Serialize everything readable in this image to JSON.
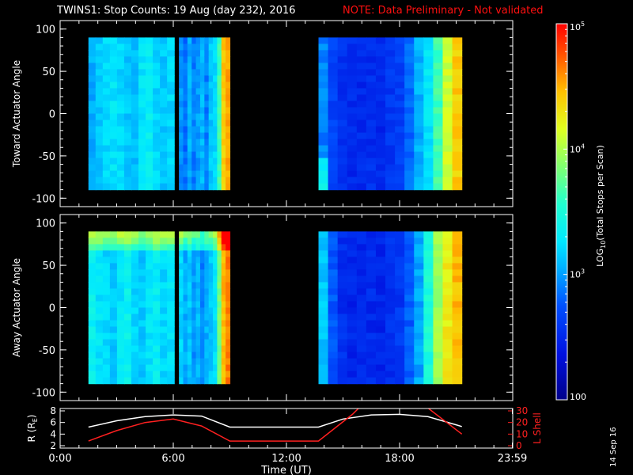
{
  "header": {
    "title": "TWINS1: Stop Counts: 19 Aug (day 232), 2016",
    "note": "NOTE: Data Preliminary - Not validated"
  },
  "date_stamp": "14 Sep 16",
  "colors": {
    "background": "#000000",
    "axis": "#ffffff",
    "note": "#ff1010",
    "l_shell": "#ff2020",
    "r_line": "#ffffff"
  },
  "chart_data": [
    {
      "type": "heatmap",
      "name": "toward",
      "ylabel": "Toward Actuator Angle",
      "ylim": [
        -110,
        110
      ],
      "yticks": [
        -100,
        -50,
        0,
        50,
        100
      ],
      "xlim": [
        0,
        24
      ],
      "segments": [
        {
          "t_start": 1.5,
          "t_end": 6.05,
          "level": "cyan",
          "cols": [
            0.35,
            0.38,
            0.4,
            0.42,
            0.4,
            0.38,
            0.36,
            0.42,
            0.44,
            0.4,
            0.38,
            0.4
          ]
        },
        {
          "t_start": 6.3,
          "t_end": 9.0,
          "level": "mixed",
          "cols": [
            0.32,
            0.28,
            0.35,
            0.3,
            0.33,
            0.36,
            0.3,
            0.38,
            0.4,
            0.55,
            0.8,
            0.85
          ]
        },
        {
          "t_start": 13.7,
          "t_end": 21.3,
          "level": "blue",
          "cols": [
            0.3,
            0.22,
            0.18,
            0.17,
            0.17,
            0.18,
            0.17,
            0.2,
            0.22,
            0.28,
            0.35,
            0.42,
            0.55,
            0.7,
            0.8
          ]
        }
      ]
    },
    {
      "type": "heatmap",
      "name": "away",
      "ylabel": "Away Actuator Angle",
      "ylim": [
        -110,
        110
      ],
      "yticks": [
        -100,
        -50,
        0,
        50,
        100
      ],
      "xlim": [
        0,
        24
      ],
      "segments": [
        {
          "t_start": 1.5,
          "t_end": 6.05,
          "level": "cyan",
          "cols": [
            0.45,
            0.42,
            0.4,
            0.38,
            0.42,
            0.45,
            0.4,
            0.38,
            0.42,
            0.44,
            0.4,
            0.42
          ]
        },
        {
          "t_start": 6.3,
          "t_end": 9.0,
          "level": "mixed",
          "cols": [
            0.4,
            0.35,
            0.38,
            0.32,
            0.36,
            0.3,
            0.35,
            0.38,
            0.42,
            0.6,
            0.82,
            0.88
          ]
        },
        {
          "t_start": 13.7,
          "t_end": 21.3,
          "level": "blue",
          "cols": [
            0.38,
            0.25,
            0.18,
            0.16,
            0.16,
            0.17,
            0.16,
            0.18,
            0.2,
            0.26,
            0.34,
            0.5,
            0.65,
            0.75,
            0.82
          ]
        }
      ]
    },
    {
      "type": "line",
      "name": "orbit",
      "xlabel": "Time (UT)",
      "xticks": [
        "0:00",
        "6:00",
        "12:00",
        "18:00",
        "23:59"
      ],
      "xtick_values": [
        0,
        6,
        12,
        18,
        23.98
      ],
      "ylabel_left": "R (R",
      "ylabel_left_sub": "E",
      "ylabel_left_close": ")",
      "ylim_left": [
        2,
        8
      ],
      "yticks_left": [
        2,
        4,
        6,
        8
      ],
      "ylabel_right": "L Shell",
      "ylim_right": [
        0,
        30
      ],
      "yticks_right": [
        0,
        10,
        20,
        30
      ],
      "series": [
        {
          "axis": "left",
          "x": [
            1.5,
            3.0,
            4.5,
            6.0,
            7.5,
            9.0,
            13.7,
            15.0,
            16.5,
            18.0,
            19.5,
            21.0,
            21.3
          ],
          "y": [
            5.2,
            6.3,
            7.0,
            7.3,
            7.1,
            5.2,
            5.2,
            6.6,
            7.3,
            7.4,
            7.0,
            5.6,
            5.3
          ]
        },
        {
          "axis": "right",
          "x": [
            1.5,
            3.0,
            4.5,
            6.0,
            7.5,
            9.0,
            13.7,
            15.5,
            16.0,
            19.3,
            21.3
          ],
          "y": [
            4,
            13,
            20,
            23,
            17,
            4,
            4,
            27,
            35,
            35,
            10
          ]
        }
      ]
    },
    {
      "type": "heatmap",
      "name": "colorbar",
      "ylabel": "LOG",
      "ylabel_sub": "10",
      "ylabel_rest": "(Total Stops per Scan)",
      "ylim": [
        100,
        100000
      ],
      "scale": "log",
      "tick_labels": [
        {
          "value": 100,
          "base": "100",
          "exp": ""
        },
        {
          "value": 1000,
          "base": "10",
          "exp": "3"
        },
        {
          "value": 10000,
          "base": "10",
          "exp": "4"
        },
        {
          "value": 100000,
          "base": "10",
          "exp": "5"
        }
      ]
    }
  ]
}
